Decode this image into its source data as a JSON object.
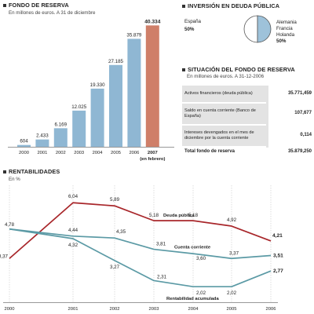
{
  "fondo": {
    "title": "FONDO DE RESERVA",
    "subtitle": "En millones de euros. A 31 de diciembre",
    "note": "(en febrero)"
  },
  "inversion": {
    "title": "INVERSIÓN EN DEUDA PÚBLICA",
    "left_name": "España",
    "left_pct": "50%",
    "right_names": [
      "Alemania",
      "Francia",
      "Holanda"
    ],
    "right_pct": "50%"
  },
  "situacion": {
    "title": "SITUACIÓN DEL FONDO DE RESERVA",
    "subtitle": "En millones de euros. A 31-12-2006",
    "rows": [
      {
        "label": "Activos financieros (deuda pública)",
        "value": "35.771,459"
      },
      {
        "label": "Saldo en cuenta corriente (Banco de España)",
        "value": "107,677"
      },
      {
        "label": "Intereses devengados en el mes de diciembre por la cuenta corriente",
        "value": "0,114"
      }
    ],
    "total_label": "Total fondo de reserva",
    "total_value": "35.879,250"
  },
  "rentabilidades": {
    "title": "RENTABILIDADES",
    "subtitle": "En %"
  },
  "colors": {
    "bar_blue": "#8fb7d3",
    "bar_highlight": "#cf7f69",
    "line_red": "#a8262a",
    "line_teal": "#5b9aa5",
    "pie_blue": "#9ec2da"
  },
  "chart_data": [
    {
      "type": "bar",
      "categories": [
        "2000",
        "2001",
        "2002",
        "2003",
        "2004",
        "2005",
        "2006",
        "2007"
      ],
      "values": [
        604,
        2433,
        6169,
        12025,
        19330,
        27185,
        35879,
        40334
      ],
      "value_labels": [
        "604",
        "2.433",
        "6.169",
        "12.025",
        "19.330",
        "27.185",
        "35.879",
        "40.334"
      ],
      "highlight_index": 7,
      "ylim": [
        0,
        42000
      ]
    },
    {
      "type": "pie",
      "slices": [
        {
          "label": "España",
          "value": 50
        },
        {
          "label": "Alemania Francia Holanda",
          "value": 50
        }
      ]
    },
    {
      "type": "line",
      "categories": [
        "2000",
        "2001",
        "2002",
        "2003",
        "2004",
        "2005",
        "2006"
      ],
      "ylim": [
        1.5,
        6.5
      ],
      "series": [
        {
          "name": "Deuda pública",
          "values": [
            3.37,
            6.04,
            5.89,
            5.18,
            5.18,
            4.92,
            4.21
          ],
          "labels": [
            "3,37",
            "6,04",
            "5,89",
            "5,18",
            "5,18",
            "4,92",
            "4,21"
          ]
        },
        {
          "name": "Cuenta corriente",
          "values": [
            4.78,
            4.44,
            4.35,
            3.81,
            3.6,
            3.37,
            3.51
          ],
          "labels": [
            "4,78",
            "4,44",
            "4,35",
            "3,81",
            "3,60",
            "3,37",
            "3,51"
          ]
        },
        {
          "name": "Rentabilidad acumulada",
          "values": [
            4.78,
            4.32,
            3.27,
            2.31,
            2.02,
            2.02,
            2.77
          ],
          "labels": [
            "",
            "4,32",
            "3,27",
            "2,31",
            "2,02",
            "2,02",
            "2,77"
          ]
        }
      ]
    }
  ]
}
